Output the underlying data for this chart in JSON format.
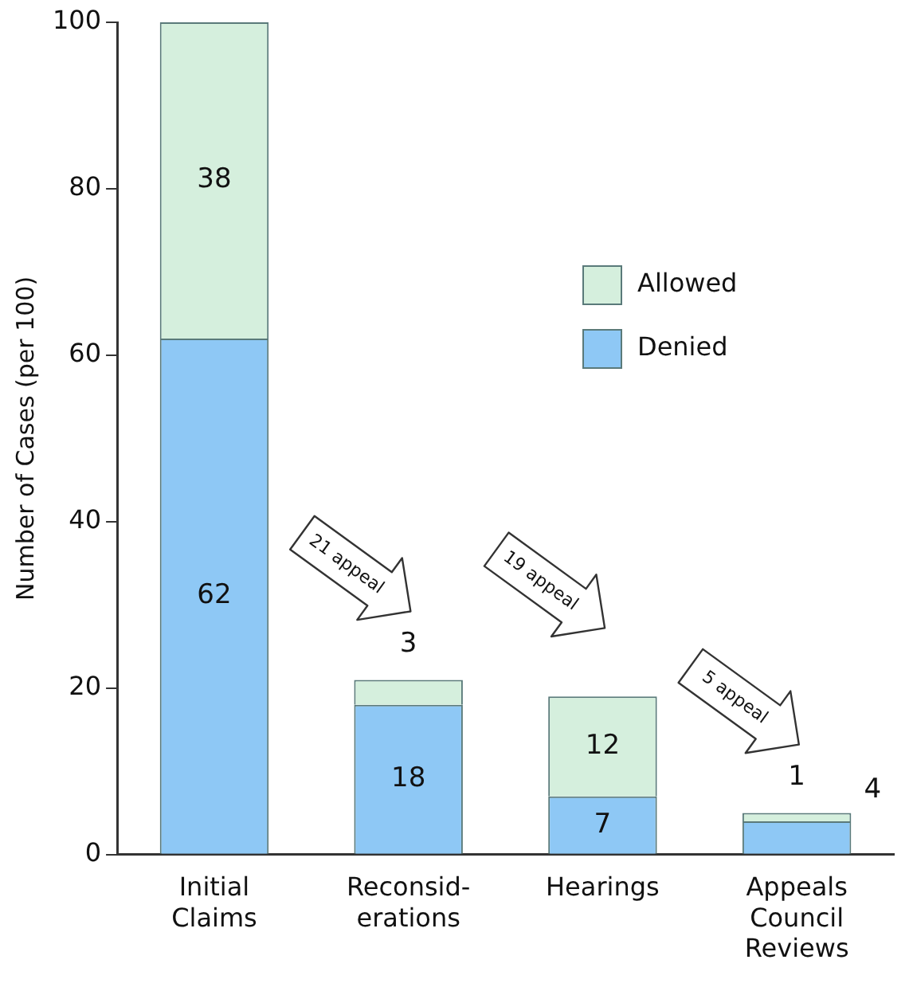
{
  "chart_data": {
    "type": "bar",
    "stacked": true,
    "ylabel": "Number of Cases (per 100)",
    "categories": [
      "Initial\nClaims",
      "Reconsid-\nerations",
      "Hearings",
      "Appeals\nCouncil\nReviews"
    ],
    "series": [
      {
        "name": "Denied",
        "color": "#8ec8f5",
        "values": [
          62,
          18,
          7,
          4
        ]
      },
      {
        "name": "Allowed",
        "color": "#d5efdd",
        "values": [
          38,
          3,
          12,
          1
        ]
      }
    ],
    "ylim": [
      0,
      100
    ],
    "yticks": [
      0,
      20,
      40,
      60,
      80,
      100
    ],
    "grid": false,
    "legend": "top right",
    "data_labels": true,
    "annotations": [
      "21 appeal",
      "19 appeal",
      "5 appeal"
    ]
  }
}
